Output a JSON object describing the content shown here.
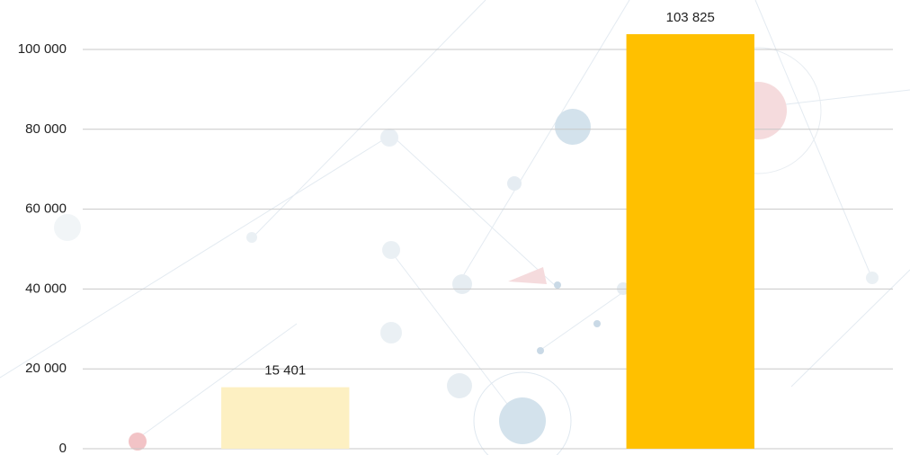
{
  "chart_data": {
    "type": "bar",
    "categories": [
      null,
      null
    ],
    "values": [
      15401,
      103825
    ],
    "value_labels": [
      "15 401",
      "103 825"
    ],
    "colors": [
      "#fdf0c2",
      "#ffc000"
    ],
    "ylim": [
      0,
      110000
    ],
    "yticks": [
      0,
      {
        "value": 20000,
        "label": "20 000"
      },
      {
        "value": 40000,
        "label": "40 000"
      },
      {
        "value": 60000,
        "label": "60 000"
      },
      {
        "value": 80000,
        "label": "80 000"
      },
      {
        "value": 100000,
        "label": "100 000"
      }
    ],
    "grid": true
  }
}
